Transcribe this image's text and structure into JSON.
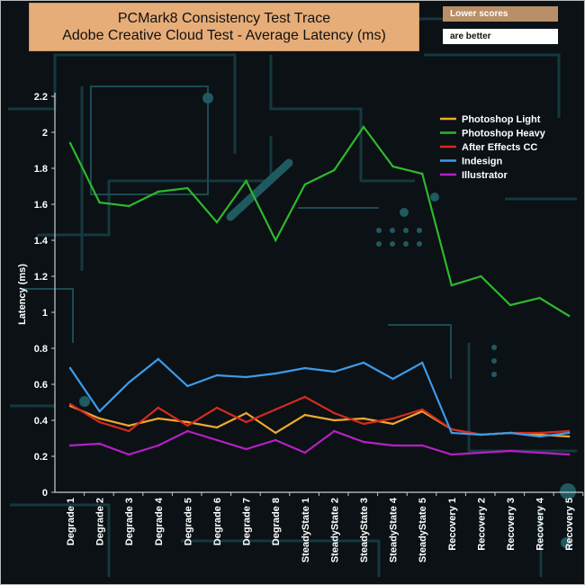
{
  "chart_data": {
    "type": "line",
    "title": "PCMark8 Consistency Test Trace",
    "subtitle": "Adobe Creative Cloud Test -  Average Latency (ms)",
    "note_lines": [
      "Lower scores",
      "are better"
    ],
    "xlabel": "",
    "ylabel": "Latency (ms)",
    "ylim": [
      0,
      2.2
    ],
    "yticks": [
      0,
      0.2,
      0.4,
      0.6,
      0.8,
      1,
      1.2,
      1.4,
      1.6,
      1.8,
      2,
      2.2
    ],
    "categories": [
      "Degrade 1",
      "Degrade 2",
      "Degrade 3",
      "Degrade 4",
      "Degrade 5",
      "Degrade 6",
      "Degrade 7",
      "Degrade 8",
      "SteadyState 1",
      "SteadyState 2",
      "SteadyState 3",
      "SteadyState 4",
      "SteadyState 5",
      "Recovery 1",
      "Recovery 2",
      "Recovery 3",
      "Recovery 4",
      "Recovery 5"
    ],
    "legend_position": "top-right",
    "series": [
      {
        "name": "Photoshop Light",
        "color": "#f0a830",
        "values": [
          0.48,
          0.41,
          0.37,
          0.41,
          0.39,
          0.36,
          0.44,
          0.33,
          0.43,
          0.4,
          0.41,
          0.38,
          0.45,
          0.35,
          0.32,
          0.33,
          0.32,
          0.31
        ]
      },
      {
        "name": " Photoshop Heavy",
        "color": "#2db82d",
        "values": [
          1.94,
          1.61,
          1.59,
          1.67,
          1.69,
          1.5,
          1.73,
          1.4,
          1.71,
          1.79,
          2.03,
          1.81,
          1.77,
          1.15,
          1.2,
          1.04,
          1.08,
          0.98
        ]
      },
      {
        "name": "After Effects CC",
        "color": "#d42a1f",
        "values": [
          0.49,
          0.39,
          0.34,
          0.47,
          0.37,
          0.47,
          0.39,
          0.46,
          0.53,
          0.44,
          0.38,
          0.41,
          0.46,
          0.35,
          0.32,
          0.33,
          0.33,
          0.34
        ]
      },
      {
        "name": "Indesign",
        "color": "#3d9be9",
        "values": [
          0.69,
          0.45,
          0.61,
          0.74,
          0.59,
          0.65,
          0.64,
          0.66,
          0.69,
          0.67,
          0.72,
          0.63,
          0.72,
          0.33,
          0.32,
          0.33,
          0.31,
          0.33
        ]
      },
      {
        "name": "Illustrator",
        "color": "#b61fc8",
        "values": [
          0.26,
          0.27,
          0.21,
          0.26,
          0.34,
          0.29,
          0.24,
          0.29,
          0.22,
          0.34,
          0.28,
          0.26,
          0.26,
          0.21,
          0.22,
          0.23,
          0.22,
          0.21
        ]
      }
    ]
  }
}
